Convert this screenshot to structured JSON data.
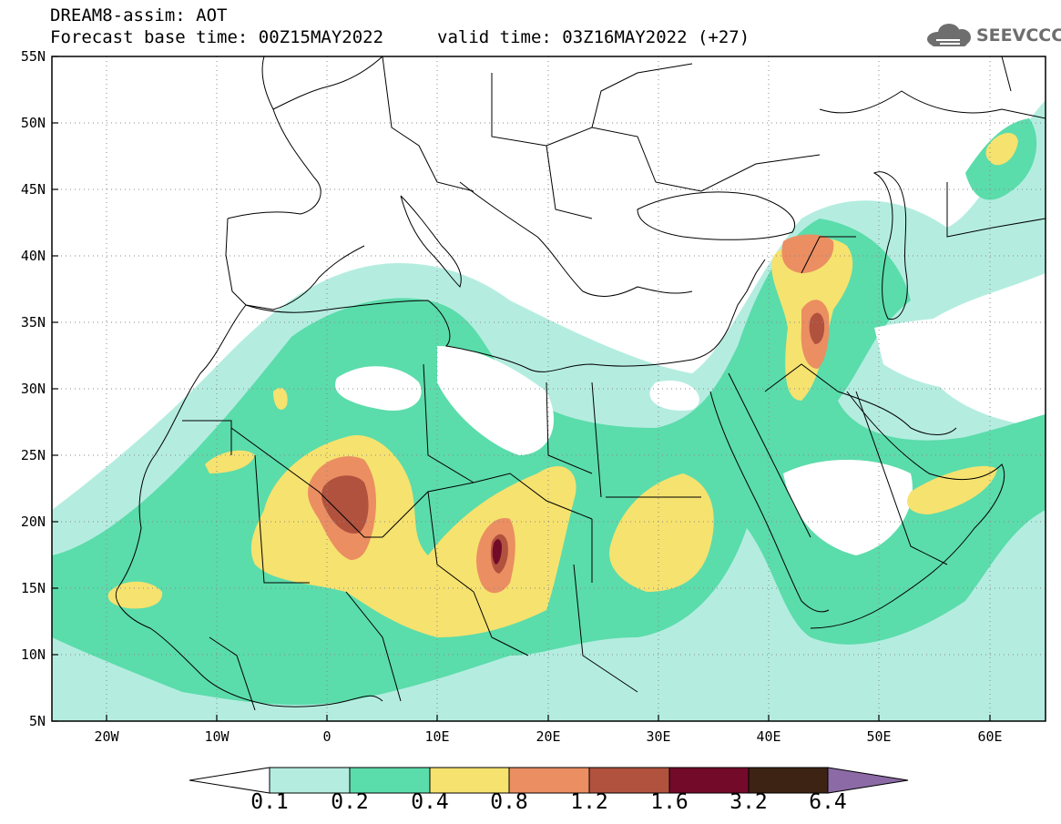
{
  "title": {
    "line1": "DREAM8-assim: AOT",
    "line2": "Forecast base time: 00Z15MAY2022",
    "valid": "valid time: 03Z16MAY2022 (+27)"
  },
  "logo": {
    "icon": "cloud-logo-icon",
    "text": "SEEVCCC"
  },
  "map": {
    "lon_range": [
      -25,
      65
    ],
    "lat_range": [
      5,
      55
    ],
    "lat_ticks": [
      "55N",
      "50N",
      "45N",
      "40N",
      "35N",
      "30N",
      "25N",
      "20N",
      "15N",
      "10N",
      "5N"
    ],
    "lon_ticks": [
      "20W",
      "10W",
      "0",
      "10E",
      "20E",
      "30E",
      "40E",
      "50E",
      "60E"
    ],
    "gridlines": "dotted"
  },
  "colorbar": {
    "labels": [
      "0.1",
      "0.2",
      "0.4",
      "0.8",
      "1.2",
      "1.6",
      "3.2",
      "6.4"
    ],
    "colors": {
      "below": "#ffffff",
      "c1": "#b4ede0",
      "c2": "#5bdcab",
      "c3": "#f6e26f",
      "c4": "#eb8e62",
      "c5": "#b1523e",
      "c6": "#740a2a",
      "c7": "#3d2314",
      "above": "#8c6aa6"
    }
  }
}
